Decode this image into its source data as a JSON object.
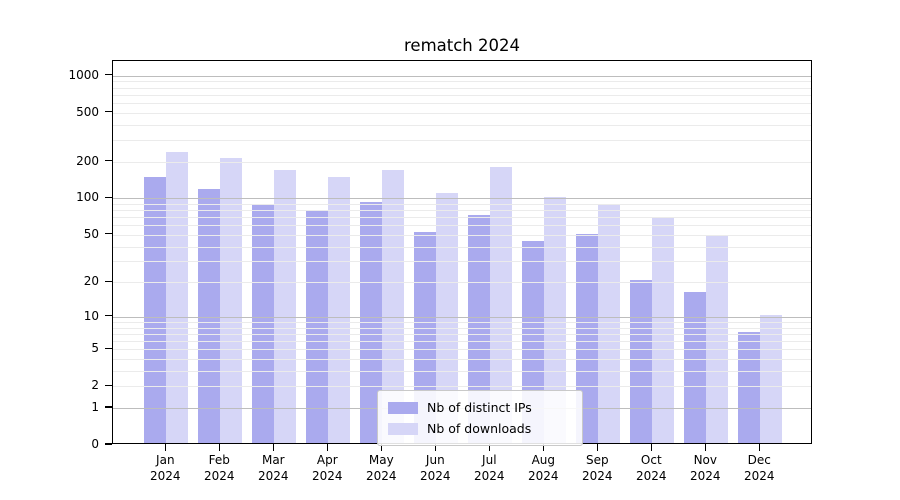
{
  "chart_data": {
    "type": "bar",
    "title": "rematch 2024",
    "categories": [
      "Jan",
      "Feb",
      "Mar",
      "Apr",
      "May",
      "Jun",
      "Jul",
      "Aug",
      "Sep",
      "Oct",
      "Nov",
      "Dec"
    ],
    "year_label": "2024",
    "series": [
      {
        "name": "Nb of distinct IPs",
        "color": "#aaaaee",
        "values": [
          144,
          115,
          87,
          77,
          90,
          51,
          70,
          43,
          49,
          20,
          16,
          7
        ]
      },
      {
        "name": "Nb of downloads",
        "color": "#d6d6f7",
        "values": [
          230,
          205,
          165,
          144,
          165,
          106,
          174,
          98,
          87,
          67,
          47,
          10
        ]
      }
    ],
    "y_scale": "log10(value+1)",
    "y_major_ticks": [
      1000,
      500,
      200,
      100,
      50,
      20,
      10,
      5,
      2,
      1,
      0
    ],
    "y_major_gridlines": [
      1,
      10,
      100,
      1000
    ],
    "y_minor_gridlines": [
      2,
      3,
      4,
      5,
      6,
      7,
      8,
      9,
      20,
      30,
      40,
      50,
      60,
      70,
      80,
      90,
      200,
      300,
      400,
      500,
      600,
      700,
      800,
      900
    ],
    "ylim": [
      0,
      1300
    ],
    "grid": true,
    "legend_position": "bottom-center",
    "colors": {
      "major_grid": "#bdbdbd",
      "minor_grid": "#ebebeb",
      "axis": "#000000",
      "background": "#ffffff"
    }
  }
}
